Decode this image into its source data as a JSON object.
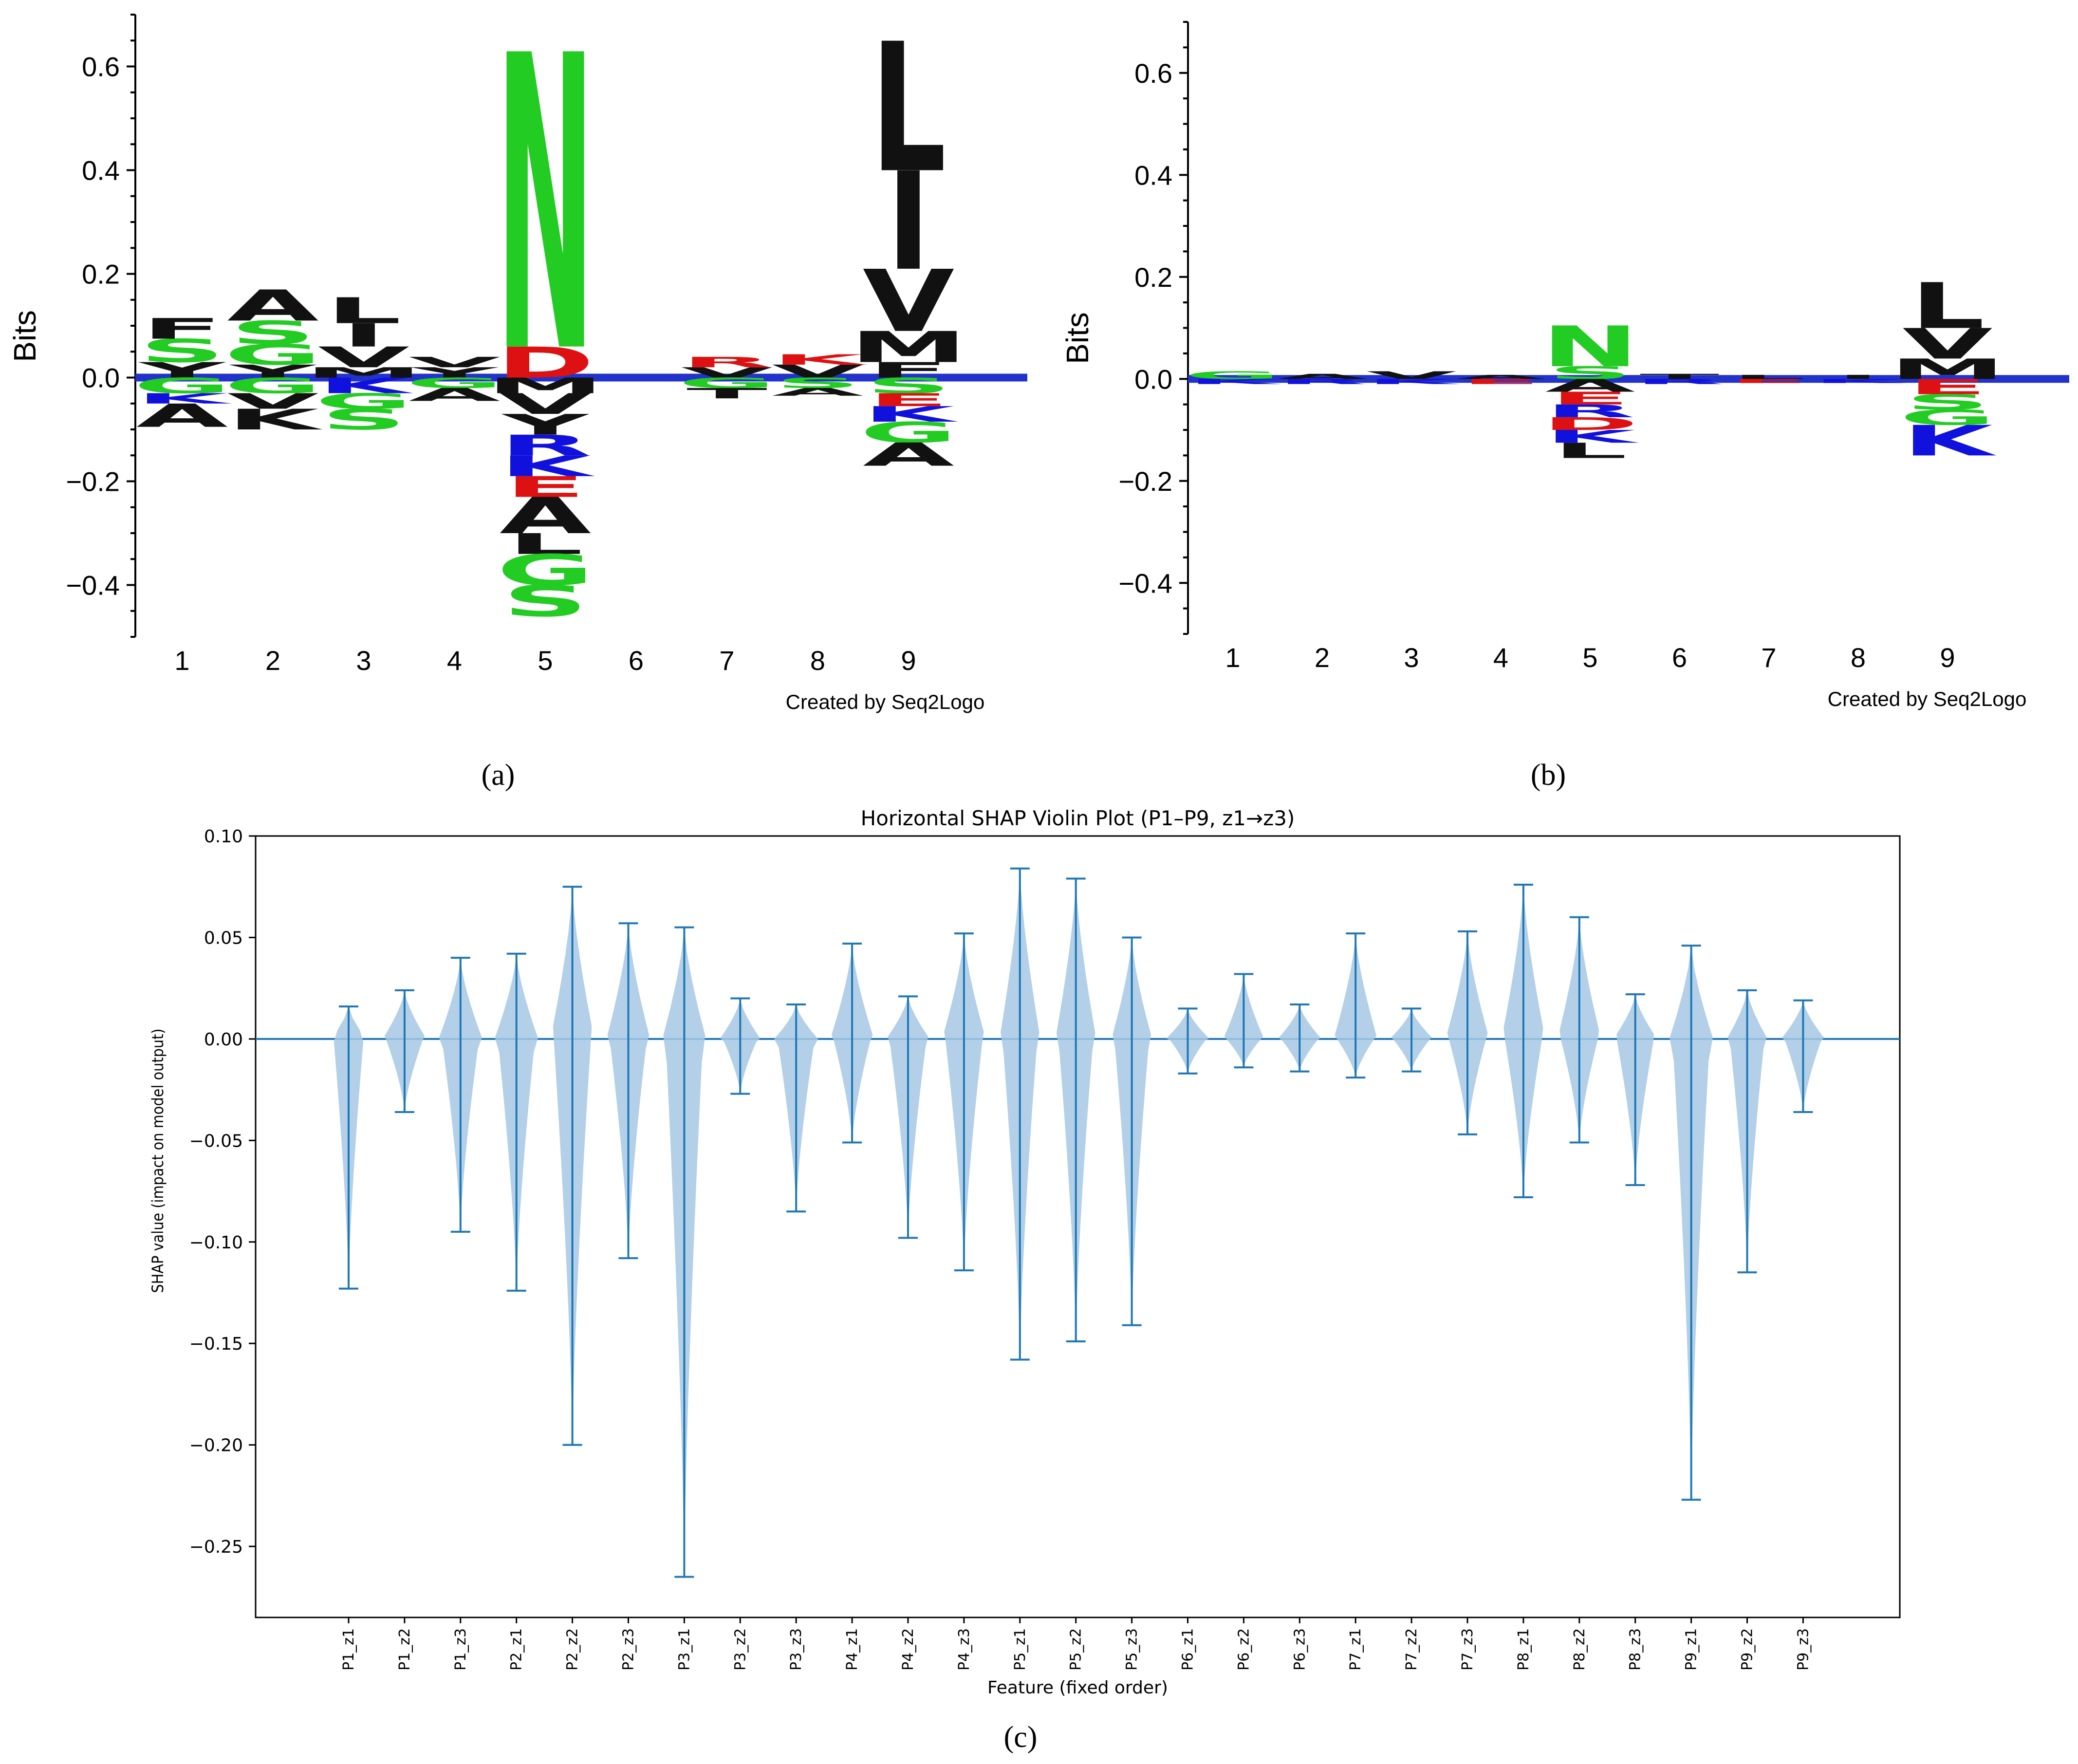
{
  "panel_labels": [
    "(a)",
    "(b)",
    "(c)"
  ],
  "chart_data": [
    {
      "id": "a",
      "type": "sequence-logo",
      "ylabel": "Bits",
      "ylim": [
        -0.5,
        0.7
      ],
      "yticks": [
        -0.4,
        -0.2,
        0.0,
        0.2,
        0.4,
        0.6
      ],
      "ytick_labels": [
        "−0.4",
        "−0.2",
        "0.0",
        "0.2",
        "0.4",
        "0.6"
      ],
      "positions": [
        "1",
        "2",
        "3",
        "4",
        "5",
        "6",
        "7",
        "8",
        "9"
      ],
      "credit": "Created by Seq2Logo",
      "stacks": [
        {
          "pos": 1,
          "up": [
            [
              "Y",
              0.03,
              "#111111"
            ],
            [
              "S",
              0.045,
              "#22cc22"
            ],
            [
              "F",
              0.04,
              "#111111"
            ]
          ],
          "down": [
            [
              "G",
              0.03,
              "#22cc22"
            ],
            [
              "K",
              0.02,
              "#1111dd"
            ],
            [
              "A",
              0.045,
              "#111111"
            ]
          ]
        },
        {
          "pos": 2,
          "up": [
            [
              "Y",
              0.025,
              "#111111"
            ],
            [
              "G",
              0.04,
              "#22cc22"
            ],
            [
              "S",
              0.045,
              "#22cc22"
            ],
            [
              "A",
              0.06,
              "#111111"
            ]
          ],
          "down": [
            [
              "G",
              0.03,
              "#22cc22"
            ],
            [
              "V",
              0.03,
              "#111111"
            ],
            [
              "K",
              0.04,
              "#111111"
            ]
          ]
        },
        {
          "pos": 3,
          "up": [
            [
              "M",
              0.02,
              "#111111"
            ],
            [
              "V",
              0.04,
              "#111111"
            ],
            [
              "I",
              0.045,
              "#111111"
            ],
            [
              "L",
              0.05,
              "#111111"
            ]
          ],
          "down": [
            [
              "K",
              0.03,
              "#1111dd"
            ],
            [
              "G",
              0.03,
              "#22cc22"
            ],
            [
              "S",
              0.04,
              "#22cc22"
            ]
          ]
        },
        {
          "pos": 4,
          "up": [
            [
              "Y",
              0.02,
              "#111111"
            ],
            [
              "V",
              0.02,
              "#111111"
            ]
          ],
          "down": [
            [
              "G",
              0.02,
              "#22cc22"
            ],
            [
              "A",
              0.025,
              "#111111"
            ]
          ]
        },
        {
          "pos": 5,
          "up": [
            [
              "D",
              0.06,
              "#dd1111"
            ],
            [
              "N",
              0.57,
              "#22cc22"
            ]
          ],
          "down": [
            [
              "M",
              0.03,
              "#111111"
            ],
            [
              "V",
              0.04,
              "#111111"
            ],
            [
              "Y",
              0.04,
              "#111111"
            ],
            [
              "R",
              0.04,
              "#1111dd"
            ],
            [
              "K",
              0.04,
              "#1111dd"
            ],
            [
              "E",
              0.04,
              "#dd1111"
            ],
            [
              "A",
              0.07,
              "#111111"
            ],
            [
              "L",
              0.04,
              "#111111"
            ],
            [
              "G",
              0.06,
              "#22cc22"
            ],
            [
              "S",
              0.06,
              "#22cc22"
            ]
          ]
        },
        {
          "pos": 6,
          "up": [],
          "down": []
        },
        {
          "pos": 7,
          "up": [
            [
              "V",
              0.02,
              "#111111"
            ],
            [
              "R",
              0.02,
              "#dd1111"
            ]
          ],
          "down": [
            [
              "G",
              0.02,
              "#22cc22"
            ],
            [
              "T",
              0.02,
              "#111111"
            ]
          ]
        },
        {
          "pos": 8,
          "up": [
            [
              "V",
              0.025,
              "#111111"
            ],
            [
              "K",
              0.02,
              "#dd1111"
            ]
          ],
          "down": [
            [
              "S",
              0.02,
              "#22cc22"
            ],
            [
              "A",
              0.015,
              "#111111"
            ]
          ]
        },
        {
          "pos": 9,
          "up": [
            [
              "F",
              0.03,
              "#111111"
            ],
            [
              "M",
              0.06,
              "#111111"
            ],
            [
              "V",
              0.12,
              "#111111"
            ],
            [
              "I",
              0.19,
              "#111111"
            ],
            [
              "L",
              0.25,
              "#111111"
            ]
          ],
          "down": [
            [
              "S",
              0.03,
              "#22cc22"
            ],
            [
              "E",
              0.025,
              "#dd1111"
            ],
            [
              "K",
              0.03,
              "#1111dd"
            ],
            [
              "G",
              0.04,
              "#22cc22"
            ],
            [
              "A",
              0.045,
              "#111111"
            ]
          ]
        }
      ]
    },
    {
      "id": "b",
      "type": "sequence-logo",
      "ylabel": "Bits",
      "ylim": [
        -0.5,
        0.7
      ],
      "yticks": [
        -0.4,
        -0.2,
        0.0,
        0.2,
        0.4,
        0.6
      ],
      "ytick_labels": [
        "−0.4",
        "−0.2",
        "0.0",
        "0.2",
        "0.4",
        "0.6"
      ],
      "positions": [
        "1",
        "2",
        "3",
        "4",
        "5",
        "6",
        "7",
        "8",
        "9"
      ],
      "credit": "Created by Seq2Logo",
      "stacks": [
        {
          "pos": 1,
          "up": [
            [
              "G",
              0.015,
              "#22cc22"
            ]
          ],
          "down": [
            [
              "K",
              0.01,
              "#1111dd"
            ]
          ]
        },
        {
          "pos": 2,
          "up": [
            [
              "A",
              0.01,
              "#111111"
            ]
          ],
          "down": [
            [
              "R",
              0.01,
              "#1111dd"
            ]
          ]
        },
        {
          "pos": 3,
          "up": [
            [
              "V",
              0.015,
              "#111111"
            ]
          ],
          "down": [
            [
              "K",
              0.01,
              "#1111dd"
            ]
          ]
        },
        {
          "pos": 4,
          "up": [
            [
              "A",
              0.008,
              "#111111"
            ]
          ],
          "down": [
            [
              "E",
              0.01,
              "#dd1111"
            ]
          ]
        },
        {
          "pos": 5,
          "up": [
            [
              "S",
              0.025,
              "#22cc22"
            ],
            [
              "N",
              0.08,
              "#22cc22"
            ]
          ],
          "down": [
            [
              "A",
              0.025,
              "#111111"
            ],
            [
              "E",
              0.025,
              "#dd1111"
            ],
            [
              "R",
              0.025,
              "#1111dd"
            ],
            [
              "D",
              0.025,
              "#dd1111"
            ],
            [
              "K",
              0.025,
              "#1111dd"
            ],
            [
              "L",
              0.03,
              "#111111"
            ]
          ]
        },
        {
          "pos": 6,
          "up": [
            [
              "T",
              0.01,
              "#111111"
            ]
          ],
          "down": [
            [
              "R",
              0.01,
              "#1111dd"
            ]
          ]
        },
        {
          "pos": 7,
          "up": [
            [
              "L",
              0.008,
              "#111111"
            ]
          ],
          "down": [
            [
              "E",
              0.008,
              "#dd1111"
            ]
          ]
        },
        {
          "pos": 8,
          "up": [
            [
              "I",
              0.008,
              "#111111"
            ]
          ],
          "down": [
            [
              "K",
              0.008,
              "#1111dd"
            ]
          ]
        },
        {
          "pos": 9,
          "up": [
            [
              "M",
              0.04,
              "#111111"
            ],
            [
              "V",
              0.06,
              "#111111"
            ],
            [
              "L",
              0.09,
              "#111111"
            ]
          ],
          "down": [
            [
              "E",
              0.03,
              "#dd1111"
            ],
            [
              "S",
              0.03,
              "#22cc22"
            ],
            [
              "G",
              0.03,
              "#22cc22"
            ],
            [
              "K",
              0.06,
              "#1111dd"
            ]
          ]
        }
      ]
    },
    {
      "id": "c",
      "type": "violin",
      "title": "Horizontal SHAP Violin Plot (P1–P9, z1→z3)",
      "xlabel": "Feature (fixed order)",
      "ylabel": "SHAP value (impact on model output)",
      "ylim": [
        -0.285,
        0.1
      ],
      "yticks": [
        -0.25,
        -0.2,
        -0.15,
        -0.1,
        -0.05,
        0.0,
        0.05,
        0.1
      ],
      "ytick_labels": [
        "−0.25",
        "−0.20",
        "−0.15",
        "−0.10",
        "−0.05",
        "0.00",
        "0.05",
        "0.10"
      ],
      "color": "#1f77b4",
      "fill": "#a6c8e4",
      "categories": [
        "P1_z1",
        "P1_z2",
        "P1_z3",
        "P2_z1",
        "P2_z2",
        "P2_z3",
        "P3_z1",
        "P3_z2",
        "P3_z3",
        "P4_z1",
        "P4_z2",
        "P4_z3",
        "P5_z1",
        "P5_z2",
        "P5_z3",
        "P6_z1",
        "P6_z2",
        "P6_z3",
        "P7_z1",
        "P7_z2",
        "P7_z3",
        "P8_z1",
        "P8_z2",
        "P8_z3",
        "P9_z1",
        "P9_z2",
        "P9_z3"
      ],
      "min": [
        -0.123,
        -0.036,
        -0.095,
        -0.124,
        -0.2,
        -0.108,
        -0.265,
        -0.027,
        -0.085,
        -0.051,
        -0.098,
        -0.114,
        -0.158,
        -0.149,
        -0.141,
        -0.017,
        -0.014,
        -0.016,
        -0.019,
        -0.016,
        -0.047,
        -0.078,
        -0.051,
        -0.072,
        -0.227,
        -0.115,
        -0.036
      ],
      "max": [
        0.016,
        0.024,
        0.04,
        0.042,
        0.075,
        0.057,
        0.055,
        0.02,
        0.017,
        0.047,
        0.021,
        0.052,
        0.084,
        0.079,
        0.05,
        0.015,
        0.032,
        0.017,
        0.052,
        0.015,
        0.053,
        0.076,
        0.06,
        0.022,
        0.046,
        0.024,
        0.019
      ],
      "half_width": [
        0.6,
        0.75,
        0.75,
        0.75,
        0.75,
        0.75,
        0.75,
        0.7,
        0.75,
        0.75,
        0.75,
        0.75,
        0.7,
        0.7,
        0.7,
        0.75,
        0.7,
        0.75,
        0.75,
        0.75,
        0.75,
        0.75,
        0.75,
        0.75,
        0.75,
        0.7,
        0.75
      ]
    }
  ]
}
